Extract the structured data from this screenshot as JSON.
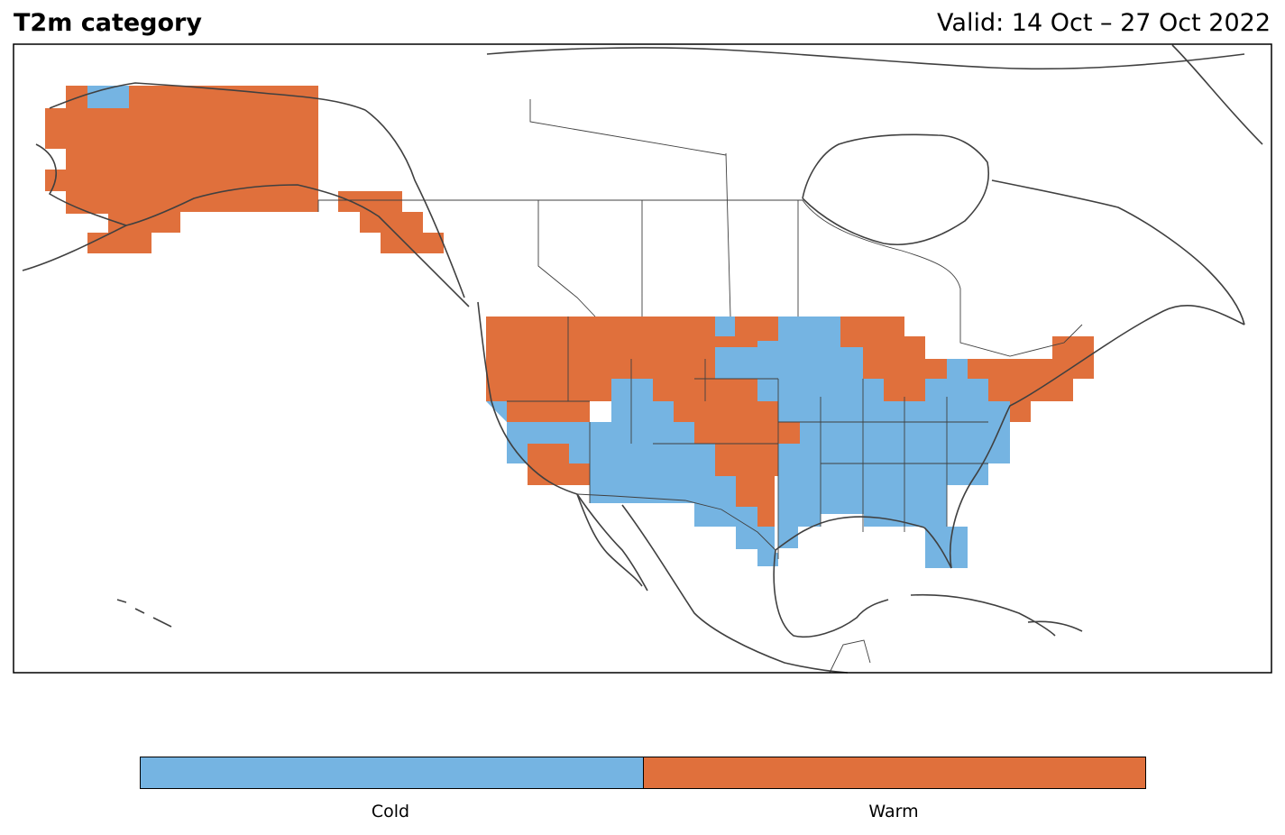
{
  "title": "T2m category",
  "valid_text": "Valid: 14 Oct – 27 Oct 2022",
  "legend": {
    "categories": [
      {
        "label": "Cold",
        "color": "#75b4e2"
      },
      {
        "label": "Warm",
        "color": "#e0703c"
      }
    ]
  },
  "colors": {
    "cold": "#75b4e2",
    "warm": "#e0703c",
    "coastline": "#404040"
  }
}
